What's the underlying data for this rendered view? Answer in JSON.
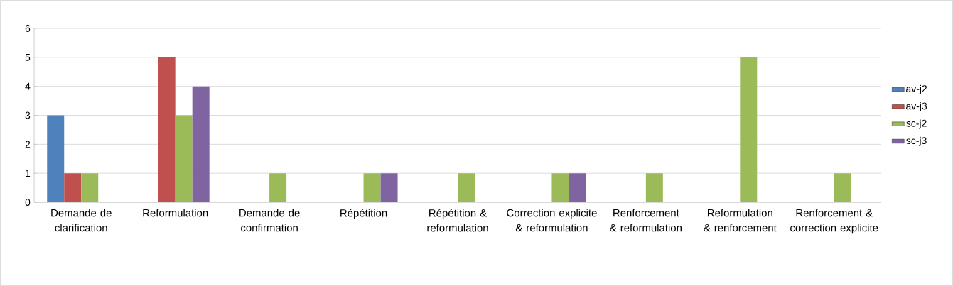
{
  "chart_data": {
    "type": "bar",
    "categories": [
      "Demande de clarification",
      "Reformulation",
      "Demande de confirmation",
      "Répétition",
      "Répétition & reformulation",
      "Correction explicite & reformulation",
      "Renforcement & reformulation",
      "Reformulation & renforcement",
      "Renforcement & correction explicite"
    ],
    "series": [
      {
        "name": "av-j2",
        "color": "#4f81bd",
        "values": [
          3,
          0,
          0,
          0,
          0,
          0,
          0,
          0,
          0
        ]
      },
      {
        "name": "av-j3",
        "color": "#c0504d",
        "values": [
          1,
          5,
          0,
          0,
          0,
          0,
          0,
          0,
          0
        ]
      },
      {
        "name": "sc-j2",
        "color": "#9bbb59",
        "values": [
          1,
          3,
          1,
          1,
          1,
          1,
          1,
          5,
          1
        ]
      },
      {
        "name": "sc-j3",
        "color": "#8064a2",
        "values": [
          0,
          4,
          0,
          1,
          0,
          1,
          0,
          0,
          0
        ]
      }
    ],
    "ylim": [
      0,
      6
    ],
    "yticks": [
      0,
      1,
      2,
      3,
      4,
      5,
      6
    ],
    "grid": "y",
    "legend": "right"
  }
}
